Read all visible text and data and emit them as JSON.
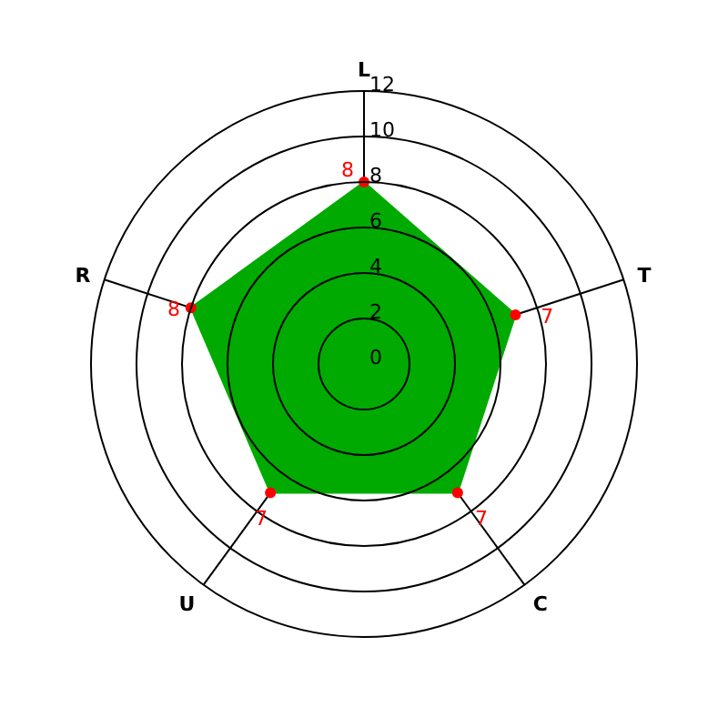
{
  "chart_data": {
    "type": "radar",
    "categories": [
      "L",
      "T",
      "C",
      "U",
      "R"
    ],
    "series": [
      {
        "color": "#00aa00",
        "values": [
          8,
          7,
          7,
          7,
          8
        ]
      }
    ],
    "ylim": [
      0,
      12
    ],
    "yticks": [
      0,
      2,
      4,
      6,
      8,
      10,
      12
    ],
    "grid": true,
    "data_labels": true,
    "marker": "circle"
  }
}
